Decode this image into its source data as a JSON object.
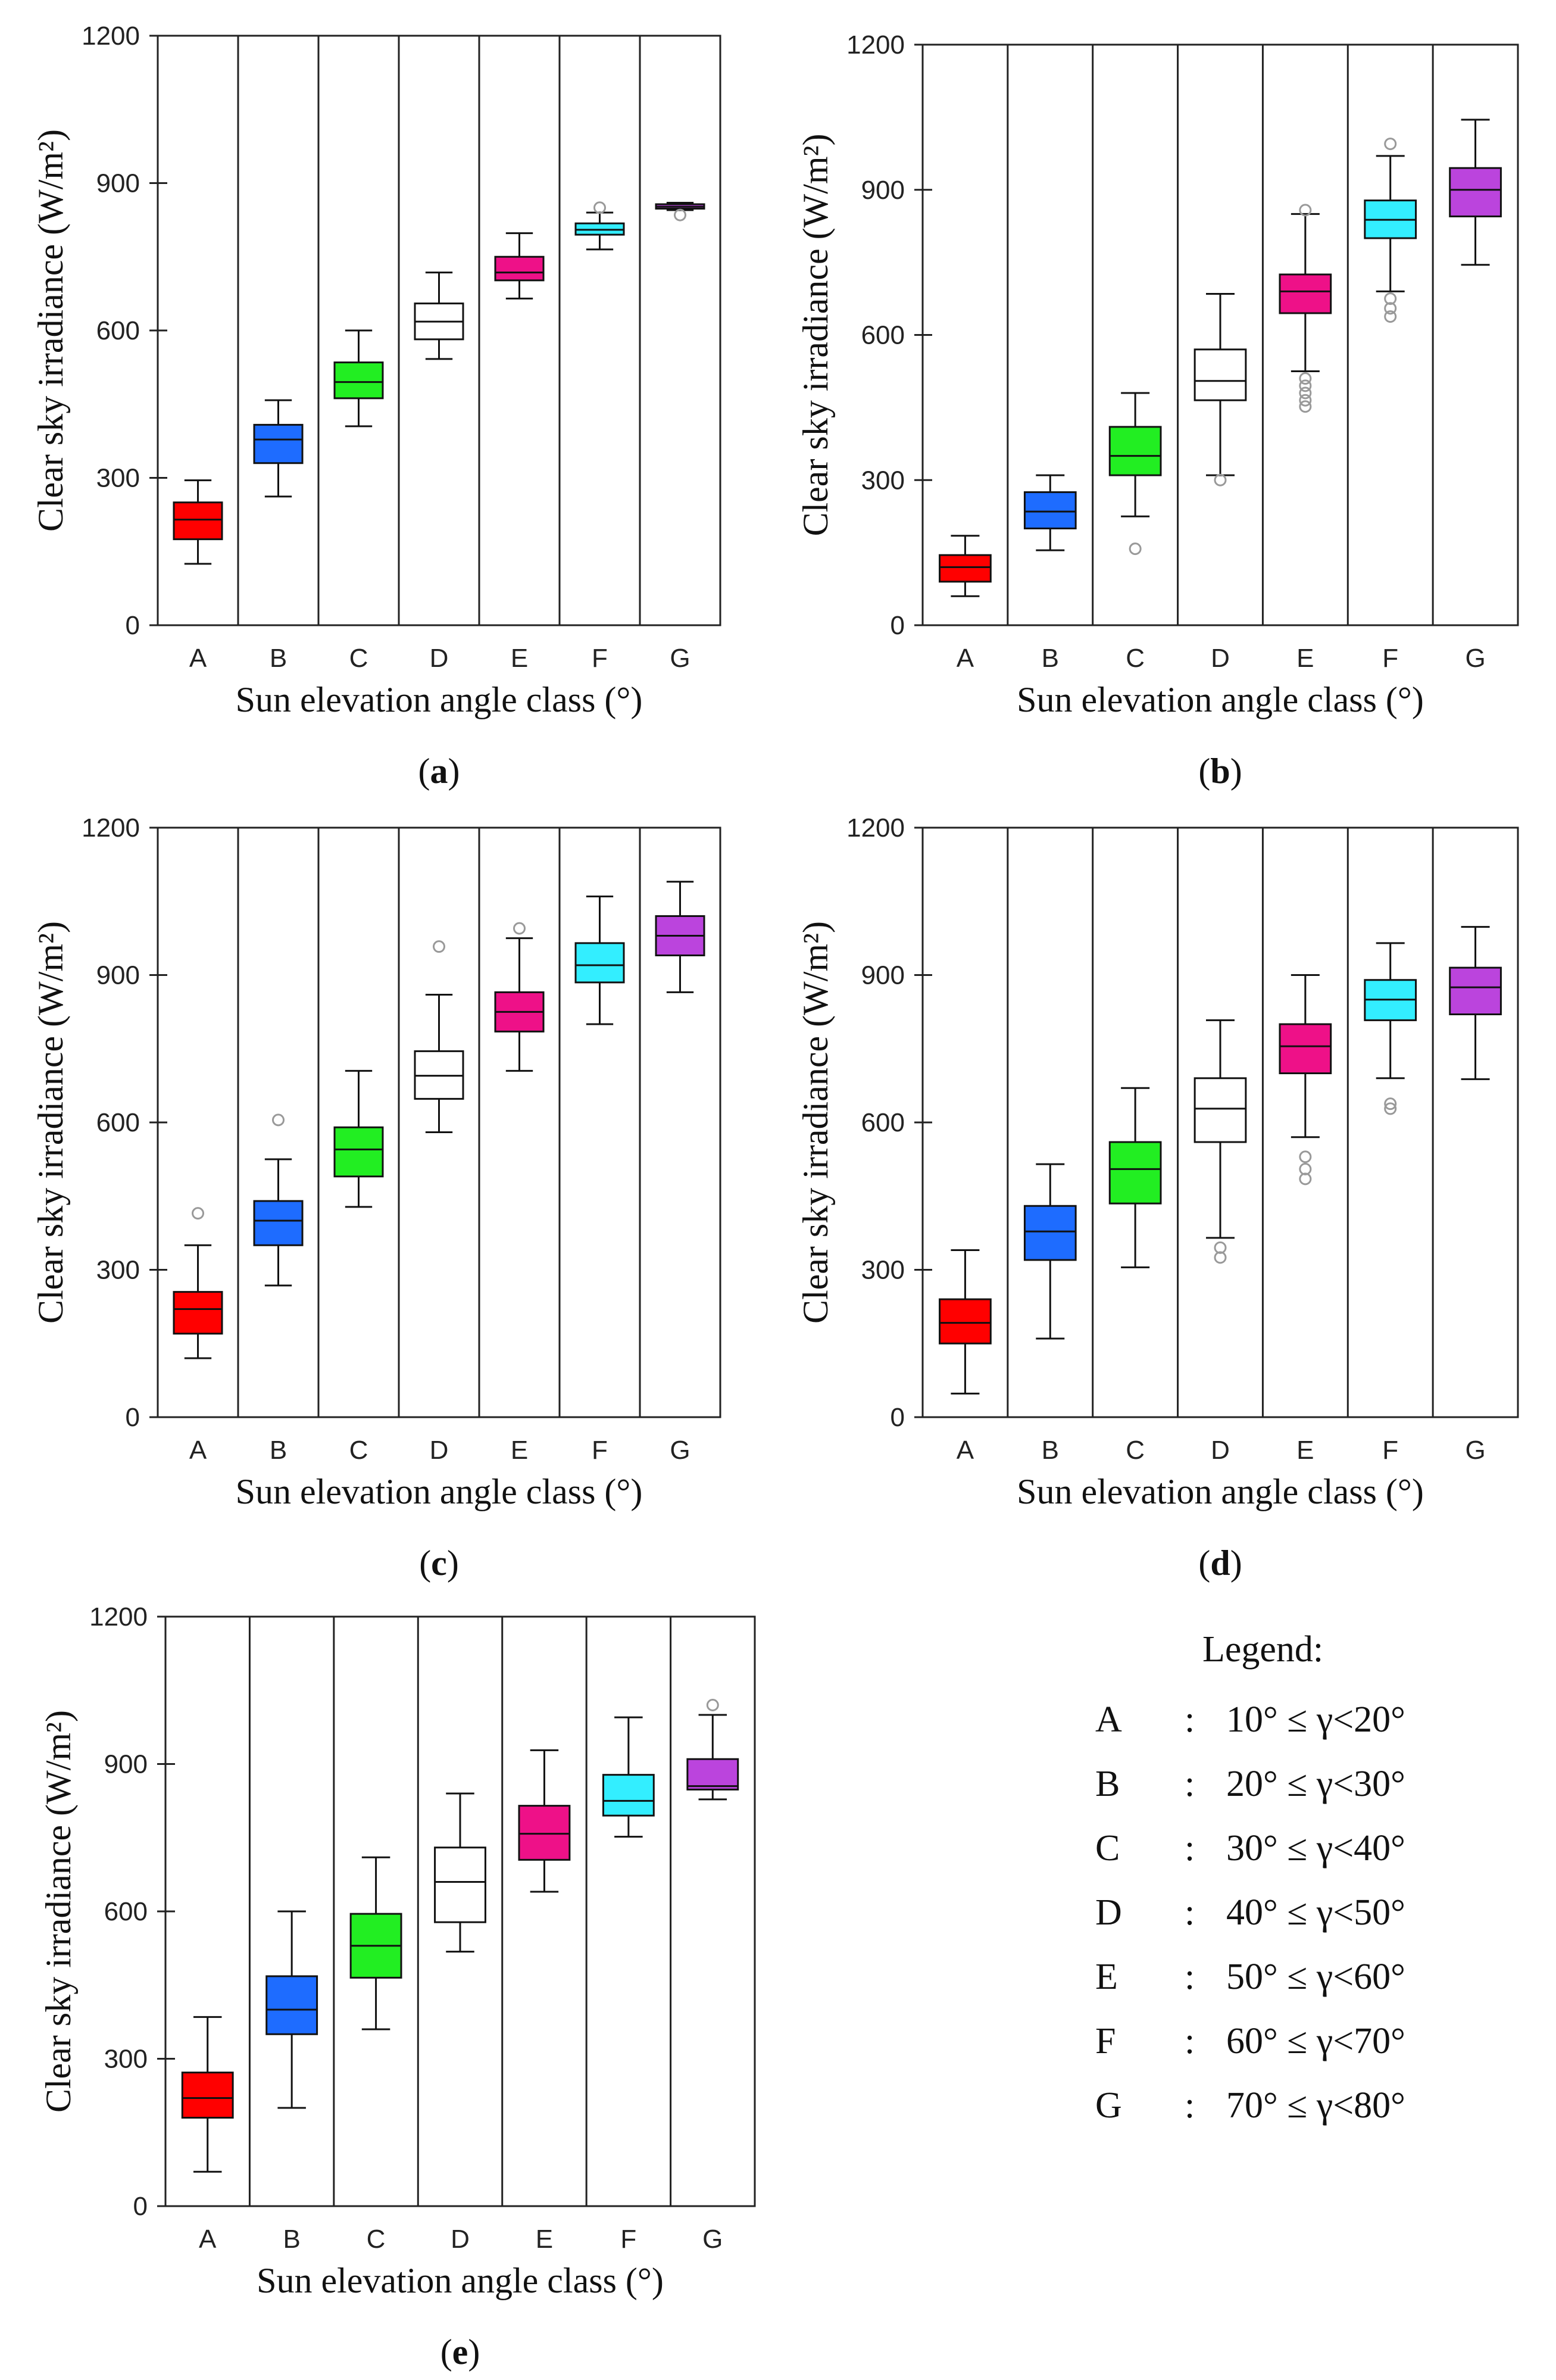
{
  "legend": {
    "title": "Legend:",
    "items": [
      {
        "key": "A",
        "sep": ":",
        "range": "10° ≤ γ<20°"
      },
      {
        "key": "B",
        "sep": ":",
        "range": "20° ≤ γ<30°"
      },
      {
        "key": "C",
        "sep": ":",
        "range": "30° ≤ γ<40°"
      },
      {
        "key": "D",
        "sep": ":",
        "range": "40° ≤ γ<50°"
      },
      {
        "key": "E",
        "sep": ":",
        "range": "50° ≤ γ<60°"
      },
      {
        "key": "F",
        "sep": ":",
        "range": "60° ≤ γ<70°"
      },
      {
        "key": "G",
        "sep": ":",
        "range": "70° ≤ γ<80°"
      }
    ]
  },
  "colors": {
    "A": "#ff0000",
    "B": "#1e6cff",
    "C": "#22ee22",
    "D": "#ffffff",
    "E": "#ee1188",
    "F": "#33eeff",
    "G": "#bb44dd"
  },
  "chart_data": [
    {
      "type": "box",
      "caption": "a",
      "xlabel": "Sun elevation angle class (°)",
      "ylabel": "Clear sky irradiance (W/m²)",
      "ylim": [
        0,
        1200
      ],
      "yticks": [
        0,
        300,
        600,
        900,
        1200
      ],
      "categories": [
        "A",
        "B",
        "C",
        "D",
        "E",
        "F",
        "G"
      ],
      "boxes": [
        {
          "min": 125,
          "q1": 175,
          "median": 215,
          "q3": 250,
          "max": 295,
          "outliers": []
        },
        {
          "min": 262,
          "q1": 330,
          "median": 378,
          "q3": 408,
          "max": 458,
          "outliers": []
        },
        {
          "min": 405,
          "q1": 462,
          "median": 495,
          "q3": 535,
          "max": 600,
          "outliers": []
        },
        {
          "min": 542,
          "q1": 582,
          "median": 618,
          "q3": 655,
          "max": 718,
          "outliers": []
        },
        {
          "min": 665,
          "q1": 702,
          "median": 718,
          "q3": 750,
          "max": 798,
          "outliers": []
        },
        {
          "min": 765,
          "q1": 795,
          "median": 805,
          "q3": 818,
          "max": 840,
          "outliers": [
            850
          ]
        },
        {
          "min": 845,
          "q1": 848,
          "median": 852,
          "q3": 857,
          "max": 860,
          "outliers": [
            835
          ]
        }
      ]
    },
    {
      "type": "box",
      "caption": "b",
      "xlabel": "Sun elevation angle class (°)",
      "ylabel": "Clear sky irradiance (W/m²)",
      "ylim": [
        0,
        1200
      ],
      "yticks": [
        0,
        300,
        600,
        900,
        1200
      ],
      "categories": [
        "A",
        "B",
        "C",
        "D",
        "E",
        "F",
        "G"
      ],
      "boxes": [
        {
          "min": 60,
          "q1": 90,
          "median": 120,
          "q3": 145,
          "max": 185,
          "outliers": []
        },
        {
          "min": 155,
          "q1": 200,
          "median": 235,
          "q3": 275,
          "max": 310,
          "outliers": []
        },
        {
          "min": 225,
          "q1": 310,
          "median": 350,
          "q3": 410,
          "max": 480,
          "outliers": [
            158
          ]
        },
        {
          "min": 310,
          "q1": 465,
          "median": 505,
          "q3": 570,
          "max": 685,
          "outliers": [
            300
          ]
        },
        {
          "min": 525,
          "q1": 645,
          "median": 690,
          "q3": 725,
          "max": 850,
          "outliers": [
            858,
            510,
            495,
            480,
            465,
            452
          ]
        },
        {
          "min": 690,
          "q1": 800,
          "median": 838,
          "q3": 878,
          "max": 970,
          "outliers": [
            995,
            675,
            655,
            638
          ]
        },
        {
          "min": 745,
          "q1": 845,
          "median": 900,
          "q3": 945,
          "max": 1045,
          "outliers": []
        }
      ]
    },
    {
      "type": "box",
      "caption": "c",
      "xlabel": "Sun elevation angle class (°)",
      "ylabel": "Clear sky irradiance (W/m²)",
      "ylim": [
        0,
        1200
      ],
      "yticks": [
        0,
        300,
        600,
        900,
        1200
      ],
      "categories": [
        "A",
        "B",
        "C",
        "D",
        "E",
        "F",
        "G"
      ],
      "boxes": [
        {
          "min": 120,
          "q1": 170,
          "median": 220,
          "q3": 255,
          "max": 350,
          "outliers": [
            415
          ]
        },
        {
          "min": 268,
          "q1": 350,
          "median": 400,
          "q3": 440,
          "max": 525,
          "outliers": [
            605
          ]
        },
        {
          "min": 428,
          "q1": 490,
          "median": 545,
          "q3": 590,
          "max": 705,
          "outliers": []
        },
        {
          "min": 580,
          "q1": 648,
          "median": 695,
          "q3": 745,
          "max": 860,
          "outliers": [
            958
          ]
        },
        {
          "min": 705,
          "q1": 785,
          "median": 825,
          "q3": 865,
          "max": 975,
          "outliers": [
            995
          ]
        },
        {
          "min": 800,
          "q1": 885,
          "median": 920,
          "q3": 965,
          "max": 1060,
          "outliers": []
        },
        {
          "min": 865,
          "q1": 940,
          "median": 980,
          "q3": 1020,
          "max": 1090,
          "outliers": []
        }
      ]
    },
    {
      "type": "box",
      "caption": "d",
      "xlabel": "Sun elevation angle class (°)",
      "ylabel": "Clear sky irradiance (W/m²)",
      "ylim": [
        0,
        1200
      ],
      "yticks": [
        0,
        300,
        600,
        900,
        1200
      ],
      "categories": [
        "A",
        "B",
        "C",
        "D",
        "E",
        "F",
        "G"
      ],
      "boxes": [
        {
          "min": 48,
          "q1": 150,
          "median": 192,
          "q3": 240,
          "max": 340,
          "outliers": []
        },
        {
          "min": 160,
          "q1": 320,
          "median": 378,
          "q3": 430,
          "max": 515,
          "outliers": []
        },
        {
          "min": 305,
          "q1": 435,
          "median": 505,
          "q3": 560,
          "max": 670,
          "outliers": []
        },
        {
          "min": 365,
          "q1": 560,
          "median": 628,
          "q3": 690,
          "max": 808,
          "outliers": [
            345,
            325
          ]
        },
        {
          "min": 570,
          "q1": 700,
          "median": 755,
          "q3": 800,
          "max": 900,
          "outliers": [
            530,
            505,
            485
          ]
        },
        {
          "min": 690,
          "q1": 808,
          "median": 850,
          "q3": 890,
          "max": 965,
          "outliers": [
            638,
            628
          ]
        },
        {
          "min": 688,
          "q1": 820,
          "median": 875,
          "q3": 915,
          "max": 998,
          "outliers": []
        }
      ]
    },
    {
      "type": "box",
      "caption": "e",
      "xlabel": "Sun elevation angle class (°)",
      "ylabel": "Clear sky irradiance (W/m²)",
      "ylim": [
        0,
        1200
      ],
      "yticks": [
        0,
        300,
        600,
        900,
        1200
      ],
      "categories": [
        "A",
        "B",
        "C",
        "D",
        "E",
        "F",
        "G"
      ],
      "boxes": [
        {
          "min": 70,
          "q1": 180,
          "median": 220,
          "q3": 272,
          "max": 385,
          "outliers": []
        },
        {
          "min": 200,
          "q1": 350,
          "median": 400,
          "q3": 468,
          "max": 600,
          "outliers": []
        },
        {
          "min": 360,
          "q1": 465,
          "median": 530,
          "q3": 595,
          "max": 710,
          "outliers": []
        },
        {
          "min": 518,
          "q1": 578,
          "median": 660,
          "q3": 730,
          "max": 840,
          "outliers": []
        },
        {
          "min": 640,
          "q1": 705,
          "median": 758,
          "q3": 815,
          "max": 928,
          "outliers": []
        },
        {
          "min": 752,
          "q1": 795,
          "median": 825,
          "q3": 878,
          "max": 995,
          "outliers": []
        },
        {
          "min": 828,
          "q1": 848,
          "median": 855,
          "q3": 910,
          "max": 1000,
          "outliers": [
            1020
          ]
        }
      ]
    }
  ]
}
